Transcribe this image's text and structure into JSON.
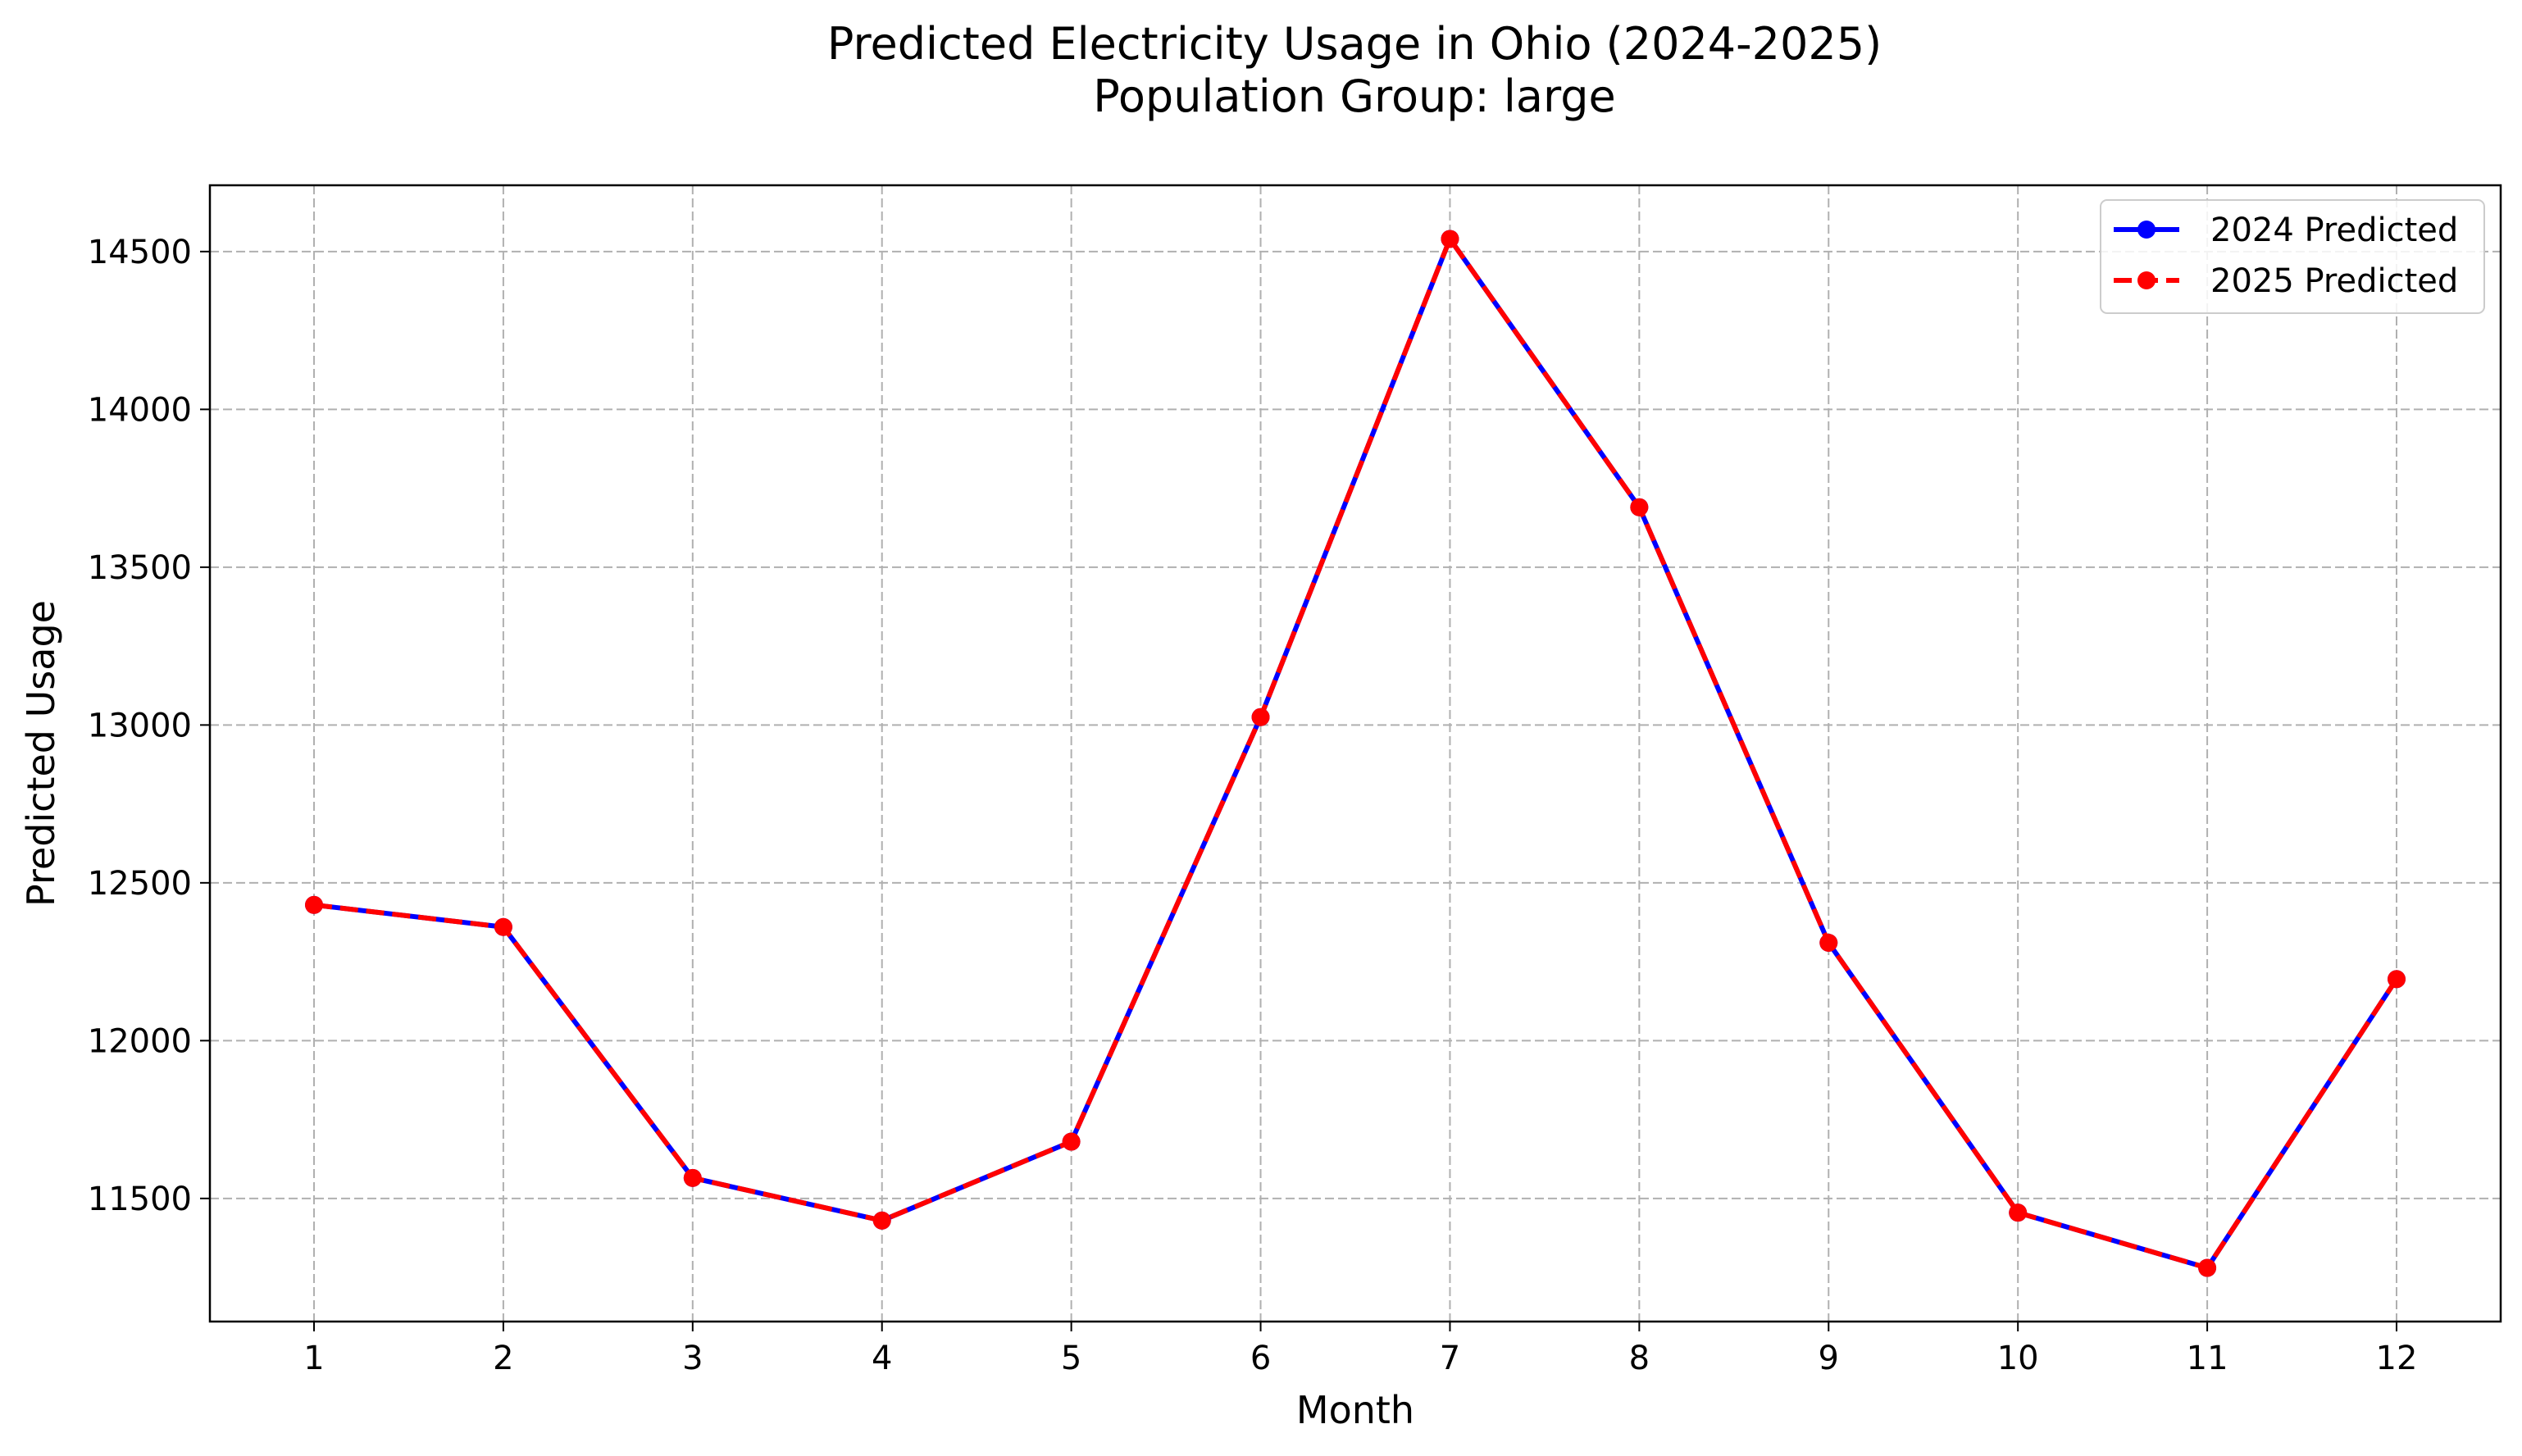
{
  "chart_data": {
    "type": "line",
    "title": "Predicted Electricity Usage in Ohio (2024-2025)",
    "subtitle": "Population Group: large",
    "xlabel": "Month",
    "ylabel": "Predicted Usage",
    "x": [
      1,
      2,
      3,
      4,
      5,
      6,
      7,
      8,
      9,
      10,
      11,
      12
    ],
    "xlim": [
      0.45,
      12.55
    ],
    "ylim": [
      11110,
      14710
    ],
    "yticks": [
      11500,
      12000,
      12500,
      13000,
      13500,
      14000,
      14500
    ],
    "grid": true,
    "legend_position": "top-right",
    "series": [
      {
        "name": "2024 Predicted",
        "color": "#0000ff",
        "line_style": "solid",
        "values": [
          12430,
          12360,
          11565,
          11430,
          11680,
          13025,
          14540,
          13690,
          12310,
          11455,
          11280,
          12195
        ]
      },
      {
        "name": "2025 Predicted",
        "color": "#ff0000",
        "line_style": "dashed",
        "values": [
          12430,
          12360,
          11565,
          11430,
          11680,
          13025,
          14540,
          13690,
          12310,
          11455,
          11280,
          12195
        ]
      }
    ]
  }
}
